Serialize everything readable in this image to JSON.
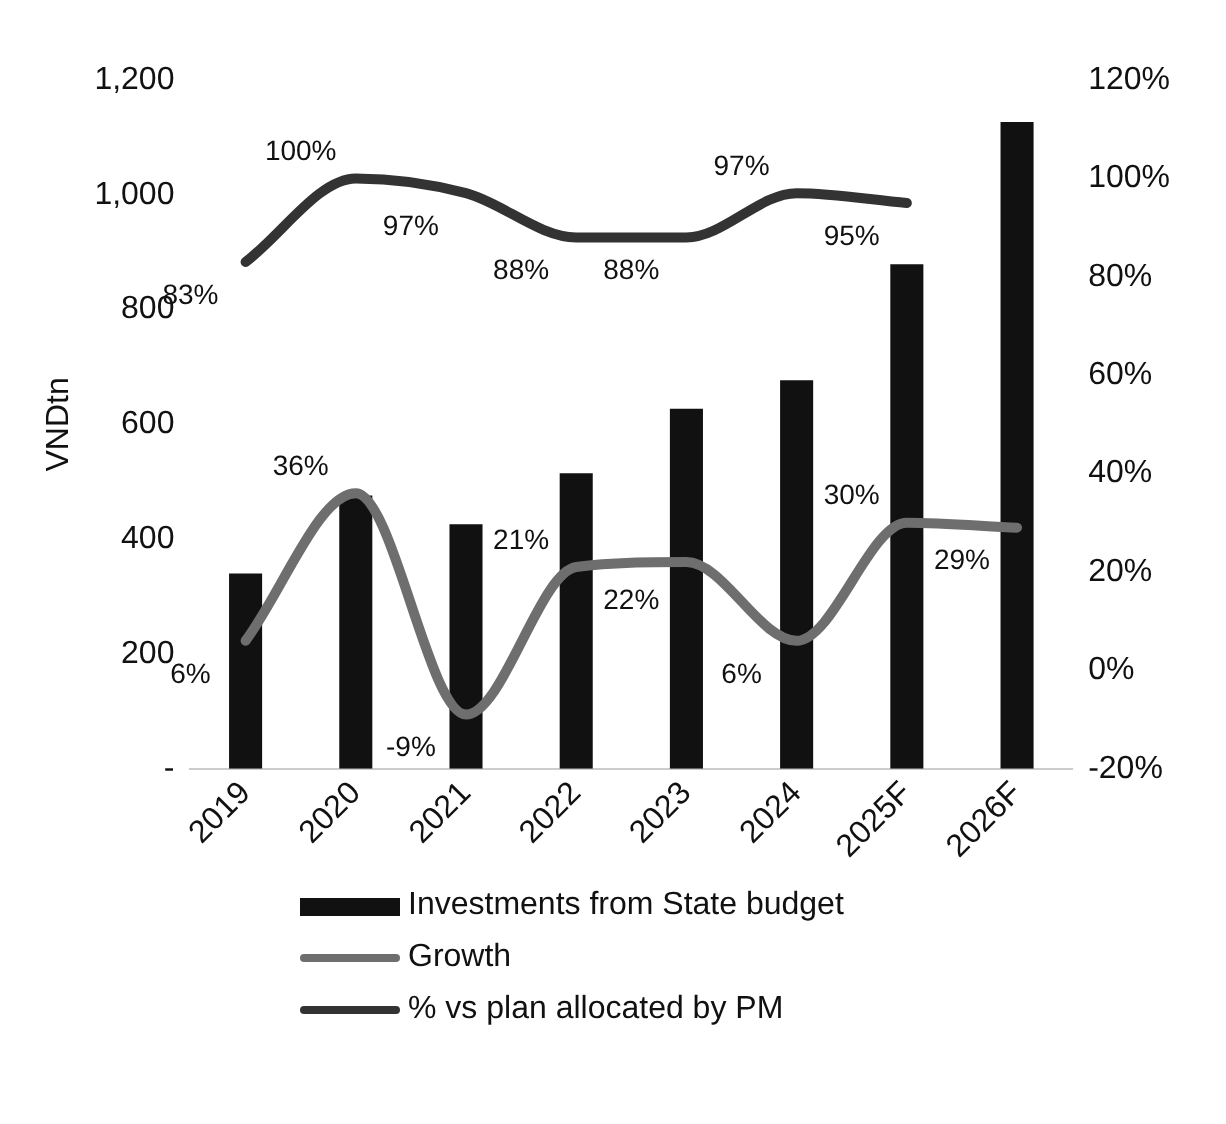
{
  "chart_data": {
    "type": "bar",
    "categories": [
      "2019",
      "2020",
      "2021",
      "2022",
      "2023",
      "2024",
      "2025F",
      "2026F"
    ],
    "ylabel": "VNDtn",
    "series": [
      {
        "name": "Investments from State budget",
        "type": "bar",
        "color": "#111111",
        "values": [
          340,
          476,
          426,
          515,
          627,
          677,
          879,
          1127
        ]
      },
      {
        "name": "Growth",
        "type": "line",
        "axis": "y2",
        "color": "#6e6e6e",
        "values": [
          6,
          36,
          -9,
          21,
          22,
          6,
          30,
          29
        ],
        "value_labels": [
          "6%",
          "36%",
          "-9%",
          "21%",
          "22%",
          "6%",
          "30%",
          "29%"
        ]
      },
      {
        "name": "% vs plan allocated by PM",
        "type": "line",
        "axis": "y2",
        "color": "#333333",
        "values": [
          83,
          100,
          97,
          88,
          88,
          97,
          95,
          null
        ],
        "value_labels": [
          "83%",
          "100%",
          "97%",
          "88%",
          "88%",
          "97%",
          "95%",
          null
        ]
      }
    ],
    "ylim": [
      0,
      1200
    ],
    "yticks": [
      {
        "value": 0,
        "label": "-"
      },
      200,
      400,
      600,
      800,
      {
        "value": 1000,
        "label": "1,000"
      },
      {
        "value": 1200,
        "label": "1,200"
      }
    ],
    "y2lim": [
      -20,
      120
    ],
    "y2ticks": [
      {
        "value": -20,
        "label": "-20%"
      },
      {
        "value": 0,
        "label": "0%"
      },
      {
        "value": 20,
        "label": "20%"
      },
      {
        "value": 40,
        "label": "40%"
      },
      {
        "value": 60,
        "label": "60%"
      },
      {
        "value": 80,
        "label": "80%"
      },
      {
        "value": 100,
        "label": "100%"
      },
      {
        "value": 120,
        "label": "120%"
      }
    ],
    "grid": false,
    "legend": "bottom"
  }
}
